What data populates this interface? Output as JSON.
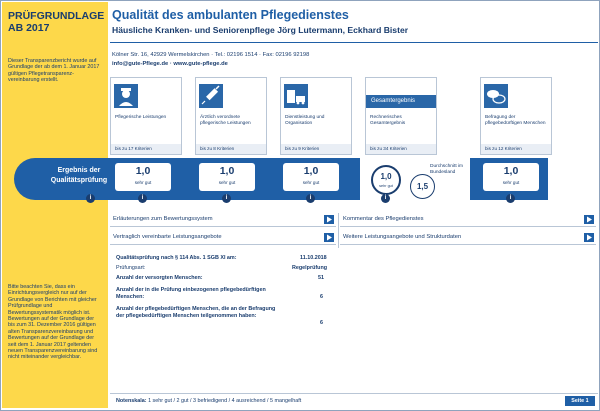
{
  "sidebar": {
    "title_line1": "PRÜFGRUNDLAGE",
    "title_line2": "AB 2017",
    "note_top": "Dieser Transparenzbericht wurde auf Grundlage der ab dem 1. Januar 2017 gültigen Pflegetransparenz-vereinbarung erstellt.",
    "note_bottom": "Bitte beachten Sie, dass ein Einrichtungsvergleich nur auf der Grundlage von Berichten mit gleicher Prüfgrundlage und Bewertungssystematik möglich ist. Bewertungen auf der Grundlage der bis zum 31. Dezember 2016 gültigen alten Transparenzvereinbarung und Bewertungen auf der Grundlage der seit dem 1. Januar 2017 geltenden neuen Transparenzvereinbarung sind nicht miteinander vergleichbar."
  },
  "header": {
    "title": "Qualität des ambulanten Pflegedienstes",
    "subtitle": "Häusliche Kranken- und Seniorenpflege Jörg Lutermann, Eckhard Bister",
    "address": "Kölner Str. 16, 42929 Wermelskirchen · Tel.: 02196 1514 · Fax: 02196 92198",
    "web": "info@gute-Pflege.de · www.gute-pflege.de"
  },
  "cards": [
    {
      "label": "Pflegerische Leistungen",
      "criteria": "bis zu 17 Kriterien",
      "grade": "1,0",
      "grade_text": "sehr gut",
      "icon": "nurse-icon"
    },
    {
      "label": "Ärztlich verordnete pflegerische Leistungen",
      "criteria": "bis zu 8 Kriterien",
      "grade": "1,0",
      "grade_text": "sehr gut",
      "icon": "syringe-icon"
    },
    {
      "label": "Dienstleistung und Organisation",
      "criteria": "bis zu 9 Kriterien",
      "grade": "1,0",
      "grade_text": "sehr gut",
      "icon": "building-van-icon"
    }
  ],
  "overall": {
    "band_title": "Gesamtergebnis",
    "label": "Rechnerisches Gesamtergebnis",
    "criteria": "bis zu 34 Kriterien",
    "grade": "1,0",
    "grade_text": "sehr gut",
    "avg_label": "Durchschnitt im Bundesland",
    "avg_value": "1,5"
  },
  "survey": {
    "label": "Befragung der pflegebedürftigen Menschen",
    "criteria": "bis zu 12 Kriterien",
    "grade": "1,0",
    "grade_text": "sehr gut",
    "icon": "speech-bubbles-icon"
  },
  "result_label": "Ergebnis der Qualitätsprüfung",
  "links": {
    "l1": "Erläuterungen zum Bewertungssystem",
    "l2": "Kommentar des Pflegedienstes",
    "l3": "Vertraglich vereinbarte Leistungsangebote",
    "l4": "Weitere Leistungsangebote und Strukturdaten"
  },
  "details": {
    "line1_label": "Qualitätsprüfung nach § 114 Abs. 1 SGB XI am:",
    "line1_value": "11.10.2018",
    "line2_label": "Prüfungsart:",
    "line2_value": "Regelprüfung",
    "line3_label": "Anzahl der versorgten Menschen:",
    "line3_value": "51",
    "line4_label": "Anzahl der in die Prüfung einbezogenen pflegebedürftigen Menschen:",
    "line4_value": "6",
    "line5_label": "Anzahl der pflegebedürftigen Menschen, die an der Befragung der pflegebedürftigen Menschen teilgenommen haben:",
    "line5_value": "6"
  },
  "footer": {
    "scale_label": "Notenskala:",
    "scale": "1 sehr gut / 2 gut / 3 befriedigend / 4 ausreichend / 5 mangelhaft",
    "page": "Seite 1"
  },
  "colors": {
    "accent": "#1f5fa6",
    "sidebar": "#fdd84a",
    "text": "#1a3d6e"
  }
}
